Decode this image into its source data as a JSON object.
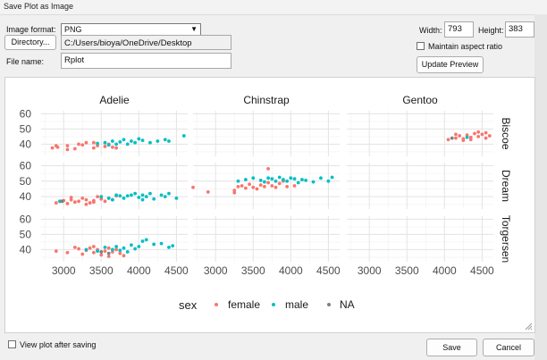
{
  "window": {
    "title": "Save Plot as Image"
  },
  "form": {
    "image_format_label": "Image format:",
    "image_format_value": "PNG",
    "directory_button": "Directory...",
    "directory_path": "C:/Users/bioya/OneDrive/Desktop",
    "file_name_label": "File name:",
    "file_name_value": "Rplot",
    "width_label": "Width:",
    "width_value": "793",
    "height_label": "Height:",
    "height_value": "383",
    "maintain_aspect_label": "Maintain aspect ratio",
    "maintain_aspect_checked": false,
    "update_preview_button": "Update Preview"
  },
  "footer": {
    "view_after_saving_label": "View plot after saving",
    "view_after_saving_checked": false,
    "save_button": "Save",
    "cancel_button": "Cancel"
  },
  "chart_data": {
    "type": "scatter",
    "title": "",
    "column_facets": [
      "Adelie",
      "Chinstrap",
      "Gentoo"
    ],
    "row_facets": [
      "Biscoe",
      "Dream",
      "Torgersen"
    ],
    "x_ticks": [
      "3000",
      "3500",
      "4000",
      "4500"
    ],
    "y_ticks": [
      "40",
      "50",
      "60"
    ],
    "xlim": [
      2700,
      4650
    ],
    "ylim": [
      32,
      62
    ],
    "legend": {
      "title": "sex",
      "position": "bottom",
      "entries": [
        "female",
        "male",
        "NA"
      ]
    },
    "colors": {
      "female": "#F8766D",
      "male": "#00BFC4",
      "NA": "#7F7F7F"
    },
    "panels": [
      {
        "col": 0,
        "row": 0,
        "series": [
          {
            "name": "female",
            "x": [
              2850,
              2920,
              3050,
              3150,
              3200,
              3250,
              3300,
              3400,
              3450,
              3550,
              3600,
              3650,
              3700,
              3400,
              3050,
              2900
            ],
            "y": [
              37.5,
              38.0,
              39.0,
              37.0,
              40.0,
              39.5,
              41.0,
              37.5,
              39.0,
              38.5,
              40.0,
              38.0,
              37.5,
              41.0,
              36.5,
              39.0
            ]
          },
          {
            "name": "male",
            "x": [
              3450,
              3550,
              3650,
              3700,
              3750,
              3800,
              3900,
              3950,
              4000,
              4050,
              4150,
              4250,
              4350,
              4400,
              4600,
              3600,
              3850
            ],
            "y": [
              40.5,
              41.0,
              42.0,
              40.0,
              41.5,
              43.0,
              42.0,
              41.0,
              43.5,
              42.5,
              41.0,
              42.0,
              43.0,
              42.0,
              45.5,
              39.5,
              40.0
            ]
          }
        ]
      },
      {
        "col": 0,
        "row": 1,
        "series": [
          {
            "name": "female",
            "x": [
              2900,
              3000,
              3050,
              3100,
              3150,
              3200,
              3250,
              3300,
              3350,
              3400,
              3450,
              3500,
              3550,
              3600,
              3650,
              3700,
              3300,
              3100,
              2950,
              3400
            ],
            "y": [
              36.0,
              37.5,
              35.5,
              38.0,
              36.5,
              37.0,
              39.0,
              38.0,
              36.0,
              37.5,
              40.0,
              38.5,
              37.0,
              39.0,
              38.0,
              40.5,
              35.0,
              39.5,
              37.0,
              36.5
            ]
          },
          {
            "name": "male",
            "x": [
              2950,
              3500,
              3600,
              3700,
              3750,
              3800,
              3850,
              3900,
              3950,
              4000,
              4050,
              4100,
              4150,
              4200,
              4300,
              4350,
              4400,
              4500,
              3650,
              4050
            ],
            "y": [
              37.0,
              40.0,
              39.0,
              41.0,
              40.5,
              39.0,
              40.5,
              41.0,
              42.0,
              39.5,
              41.0,
              40.0,
              42.0,
              38.5,
              41.0,
              40.0,
              42.0,
              39.0,
              38.0,
              38.0
            ]
          },
          {
            "name": "NA",
            "x": [
              2980
            ],
            "y": [
              37.0
            ]
          }
        ]
      },
      {
        "col": 0,
        "row": 2,
        "series": [
          {
            "name": "female",
            "x": [
              2900,
              3050,
              3200,
              3250,
              3300,
              3350,
              3400,
              3450,
              3500,
              3550,
              3600,
              3650,
              3700,
              3750,
              3800,
              3150,
              3400,
              3600
            ],
            "y": [
              39.0,
              38.0,
              40.5,
              37.0,
              39.5,
              41.0,
              38.0,
              40.0,
              36.5,
              39.0,
              41.0,
              38.5,
              40.0,
              37.5,
              36.0,
              41.5,
              42.0,
              35.5
            ]
          },
          {
            "name": "male",
            "x": [
              3300,
              3450,
              3550,
              3650,
              3700,
              3800,
              3900,
              3950,
              4000,
              4050,
              4100,
              4200,
              4300,
              4400,
              4450,
              3850,
              3750
            ],
            "y": [
              40.0,
              39.0,
              41.5,
              40.0,
              42.0,
              41.0,
              43.0,
              40.5,
              42.0,
              45.5,
              46.5,
              43.5,
              44.0,
              41.5,
              42.5,
              38.5,
              39.5
            ]
          },
          {
            "name": "NA",
            "x": [
              3500,
              3600
            ],
            "y": [
              38.5,
              37.5
            ]
          }
        ]
      },
      {
        "col": 1,
        "row": 1,
        "series": [
          {
            "name": "female",
            "x": [
              2700,
              2900,
              3250,
              3300,
              3350,
              3400,
              3450,
              3500,
              3550,
              3600,
              3650,
              3700,
              3750,
              3800,
              3850,
              3900,
              3950,
              4050,
              3250,
              3700
            ],
            "y": [
              46.0,
              43.0,
              44.0,
              46.5,
              47.0,
              45.5,
              48.0,
              46.0,
              45.0,
              47.5,
              46.5,
              49.0,
              47.0,
              46.0,
              48.5,
              50.0,
              46.5,
              47.0,
              42.5,
              58.0
            ]
          },
          {
            "name": "male",
            "x": [
              3300,
              3400,
              3500,
              3600,
              3650,
              3700,
              3750,
              3800,
              3850,
              3900,
              3950,
              4000,
              4050,
              4100,
              4150,
              4200,
              4300,
              4400,
              4500,
              4550
            ],
            "y": [
              50.0,
              51.0,
              52.0,
              50.5,
              49.5,
              52.0,
              51.5,
              50.0,
              52.5,
              51.0,
              50.0,
              52.0,
              51.5,
              49.0,
              51.0,
              50.5,
              49.5,
              52.0,
              50.0,
              52.5
            ]
          }
        ]
      },
      {
        "col": 2,
        "row": 0,
        "series": [
          {
            "name": "female",
            "x": [
              4150,
              4200,
              4250,
              4300,
              4350,
              4400,
              4450,
              4500,
              4550,
              4600,
              4250,
              4350,
              4450,
              4550,
              4050,
              4150
            ],
            "y": [
              44.0,
              45.5,
              43.5,
              46.0,
              44.5,
              47.0,
              45.0,
              46.5,
              44.0,
              45.5,
              42.5,
              43.0,
              48.0,
              47.5,
              43.0,
              46.5
            ]
          },
          {
            "name": "male",
            "x": [
              4300
            ],
            "y": [
              44.5
            ]
          },
          {
            "name": "NA",
            "x": [
              4100
            ],
            "y": [
              44.0
            ]
          }
        ]
      }
    ]
  }
}
